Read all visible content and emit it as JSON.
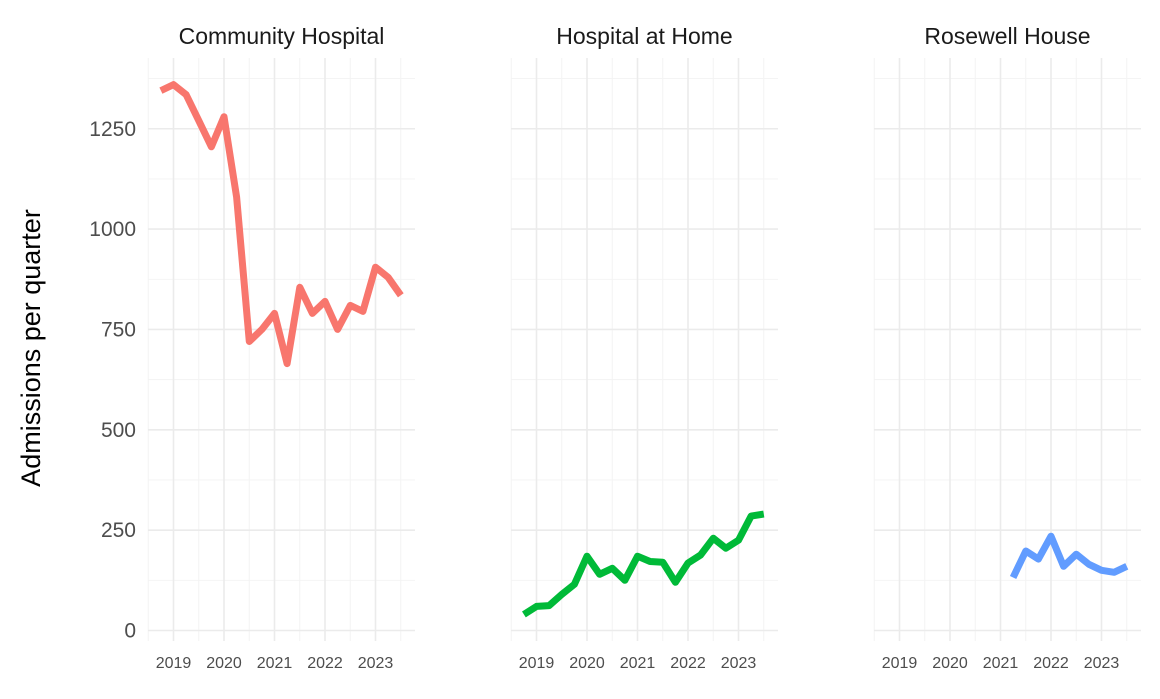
{
  "chart_data": {
    "type": "line",
    "ylabel": "Admissions per quarter",
    "ylim": [
      0,
      1400
    ],
    "yticks": [
      0,
      250,
      500,
      750,
      1000,
      1250
    ],
    "xlim": [
      2018.7,
      2023.75
    ],
    "xticks": [
      2019,
      2020,
      2021,
      2022,
      2023
    ],
    "grid": true,
    "legend": "none",
    "panels": [
      {
        "title": "Community Hospital",
        "color": "#F8766D",
        "x": [
          2018.75,
          2019.0,
          2019.25,
          2019.5,
          2019.75,
          2020.0,
          2020.25,
          2020.5,
          2020.75,
          2021.0,
          2021.25,
          2021.5,
          2021.75,
          2022.0,
          2022.25,
          2022.5,
          2022.75,
          2023.0,
          2023.25,
          2023.5
        ],
        "y": [
          1345,
          1360,
          1335,
          1270,
          1205,
          1280,
          1080,
          720,
          750,
          790,
          665,
          855,
          790,
          820,
          750,
          810,
          795,
          905,
          880,
          835
        ]
      },
      {
        "title": "Hospital at Home",
        "color": "#00BA38",
        "x": [
          2018.75,
          2019.0,
          2019.25,
          2019.5,
          2019.75,
          2020.0,
          2020.25,
          2020.5,
          2020.75,
          2021.0,
          2021.25,
          2021.5,
          2021.75,
          2022.0,
          2022.25,
          2022.5,
          2022.75,
          2023.0,
          2023.25,
          2023.5
        ],
        "y": [
          40,
          60,
          62,
          90,
          115,
          185,
          140,
          155,
          125,
          185,
          172,
          170,
          120,
          168,
          188,
          230,
          205,
          225,
          285,
          290
        ]
      },
      {
        "title": "Rosewell House",
        "color": "#619CFF",
        "x": [
          2021.25,
          2021.5,
          2021.75,
          2022.0,
          2022.25,
          2022.5,
          2022.75,
          2023.0,
          2023.25,
          2023.5
        ],
        "y": [
          132,
          198,
          178,
          235,
          160,
          190,
          165,
          150,
          145,
          160
        ]
      }
    ]
  }
}
